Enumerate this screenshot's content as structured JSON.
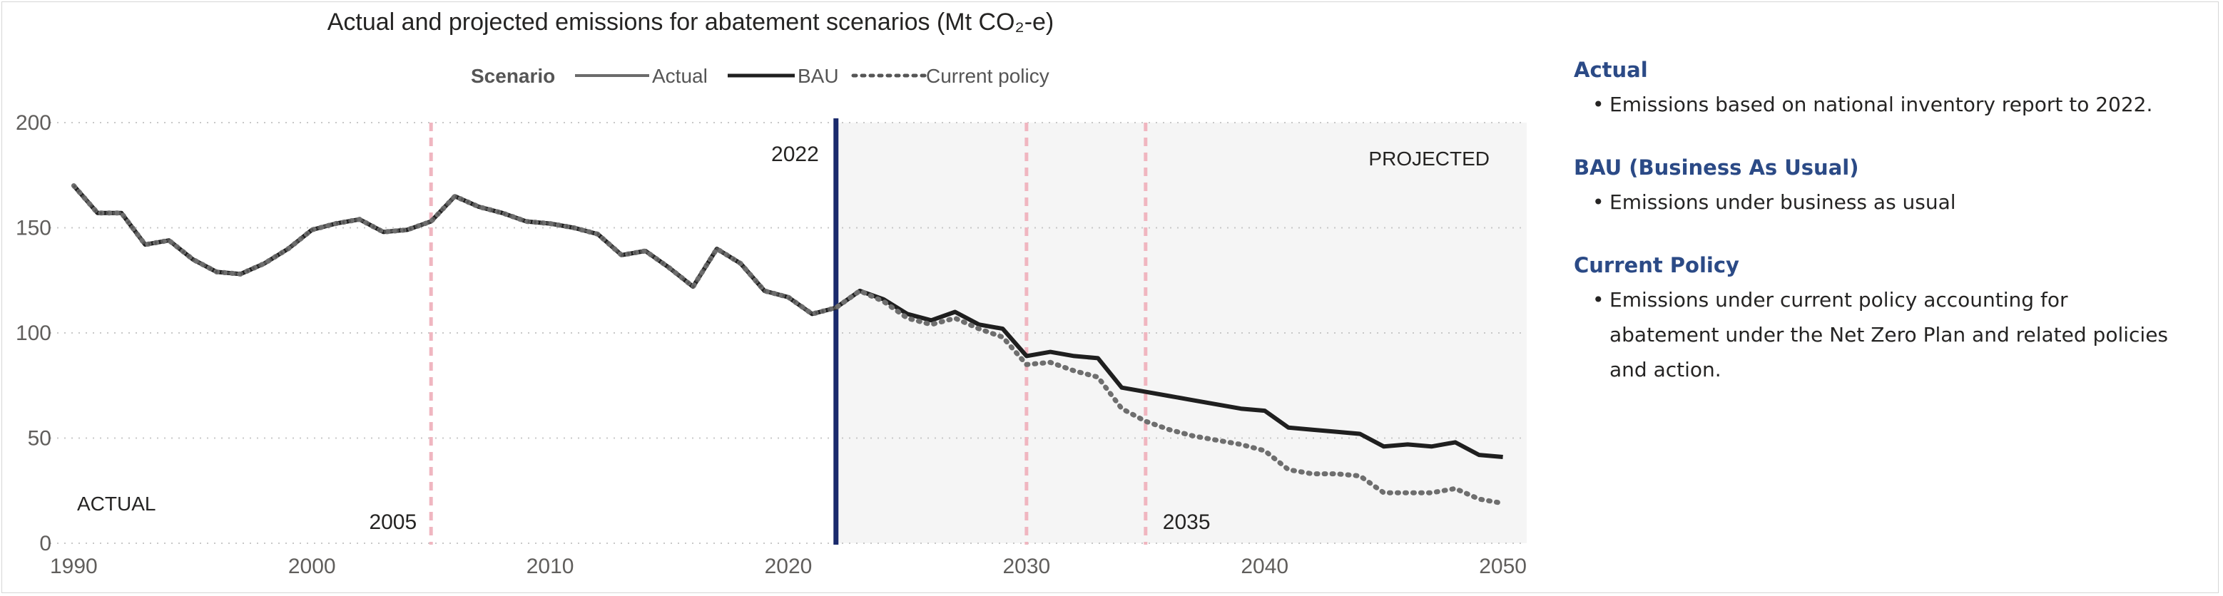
{
  "chart_data": {
    "type": "line",
    "title": "Actual and projected emissions for abatement scenarios (Mt CO₂-e)",
    "legend": {
      "title": "Scenario",
      "position": "top-center",
      "entries": [
        "Actual",
        "BAU",
        "Current policy"
      ]
    },
    "xlabel": "",
    "ylabel": "",
    "xlim": [
      1989,
      2051
    ],
    "ylim": [
      0,
      200
    ],
    "x_ticks": [
      1990,
      2000,
      2010,
      2020,
      2030,
      2040,
      2050
    ],
    "y_ticks": [
      0,
      50,
      100,
      150,
      200
    ],
    "grid": "horizontal dotted",
    "projected_region": {
      "from": 2022,
      "to": 2051,
      "label": "PROJECTED"
    },
    "actual_label": "ACTUAL",
    "reference_lines": [
      {
        "x": 2005,
        "label": "2005",
        "style": "dashed",
        "color": "#f0b6c0"
      },
      {
        "x": 2022,
        "label": "2022",
        "style": "solid",
        "color": "#1a2a6c"
      },
      {
        "x": 2030,
        "label": "",
        "style": "dashed",
        "color": "#f0b6c0"
      },
      {
        "x": 2035,
        "label": "2035",
        "style": "dashed",
        "color": "#f0b6c0"
      }
    ],
    "series": [
      {
        "name": "Actual",
        "x": [
          1990,
          1991,
          1992,
          1993,
          1994,
          1995,
          1996,
          1997,
          1998,
          1999,
          2000,
          2001,
          2002,
          2003,
          2004,
          2005,
          2006,
          2007,
          2008,
          2009,
          2010,
          2011,
          2012,
          2013,
          2014,
          2015,
          2016,
          2017,
          2018,
          2019,
          2020,
          2021,
          2022
        ],
        "values": [
          170,
          157,
          157,
          142,
          144,
          135,
          129,
          128,
          133,
          140,
          149,
          152,
          154,
          148,
          149,
          153,
          165,
          160,
          157,
          153,
          152,
          150,
          147,
          137,
          139,
          131,
          122,
          140,
          133,
          120,
          117,
          109,
          112
        ]
      },
      {
        "name": "BAU",
        "x": [
          1990,
          1991,
          1992,
          1993,
          1994,
          1995,
          1996,
          1997,
          1998,
          1999,
          2000,
          2001,
          2002,
          2003,
          2004,
          2005,
          2006,
          2007,
          2008,
          2009,
          2010,
          2011,
          2012,
          2013,
          2014,
          2015,
          2016,
          2017,
          2018,
          2019,
          2020,
          2021,
          2022,
          2023,
          2024,
          2025,
          2026,
          2027,
          2028,
          2029,
          2030,
          2031,
          2032,
          2033,
          2034,
          2035,
          2036,
          2037,
          2038,
          2039,
          2040,
          2041,
          2042,
          2043,
          2044,
          2045,
          2046,
          2047,
          2048,
          2049,
          2050
        ],
        "values": [
          170,
          157,
          157,
          142,
          144,
          135,
          129,
          128,
          133,
          140,
          149,
          152,
          154,
          148,
          149,
          153,
          165,
          160,
          157,
          153,
          152,
          150,
          147,
          137,
          139,
          131,
          122,
          140,
          133,
          120,
          117,
          109,
          112,
          120,
          116,
          109,
          106,
          110,
          104,
          102,
          89,
          91,
          89,
          88,
          74,
          72,
          70,
          68,
          66,
          64,
          63,
          55,
          54,
          53,
          52,
          46,
          47,
          46,
          48,
          42,
          41
        ]
      },
      {
        "name": "Current policy",
        "x": [
          1990,
          1991,
          1992,
          1993,
          1994,
          1995,
          1996,
          1997,
          1998,
          1999,
          2000,
          2001,
          2002,
          2003,
          2004,
          2005,
          2006,
          2007,
          2008,
          2009,
          2010,
          2011,
          2012,
          2013,
          2014,
          2015,
          2016,
          2017,
          2018,
          2019,
          2020,
          2021,
          2022,
          2023,
          2024,
          2025,
          2026,
          2027,
          2028,
          2029,
          2030,
          2031,
          2032,
          2033,
          2034,
          2035,
          2036,
          2037,
          2038,
          2039,
          2040,
          2041,
          2042,
          2043,
          2044,
          2045,
          2046,
          2047,
          2048,
          2049,
          2050
        ],
        "values": [
          170,
          157,
          157,
          142,
          144,
          135,
          129,
          128,
          133,
          140,
          149,
          152,
          154,
          148,
          149,
          153,
          165,
          160,
          157,
          153,
          152,
          150,
          147,
          137,
          139,
          131,
          122,
          140,
          133,
          120,
          117,
          109,
          112,
          120,
          115,
          107,
          104,
          107,
          102,
          98,
          85,
          86,
          82,
          79,
          64,
          58,
          54,
          51,
          49,
          47,
          44,
          35,
          33,
          33,
          32,
          24,
          24,
          24,
          26,
          21,
          19
        ]
      }
    ]
  },
  "panel": {
    "sections": [
      {
        "heading": "Actual",
        "bullets": [
          "Emissions based on national inventory report to 2022."
        ]
      },
      {
        "heading": "BAU (Business As Usual)",
        "bullets": [
          "Emissions under business as usual"
        ]
      },
      {
        "heading": "Current Policy",
        "bullets": [
          "Emissions under current policy accounting for",
          "abatement under the Net Zero Plan and related policies",
          "and action."
        ]
      }
    ]
  },
  "colors": {
    "actual": "#6b6b6b",
    "bau": "#1f1f1f",
    "current_policy": "#6e6e6e",
    "projected_bg": "#f5f5f5",
    "heading": "#2b4a86"
  }
}
